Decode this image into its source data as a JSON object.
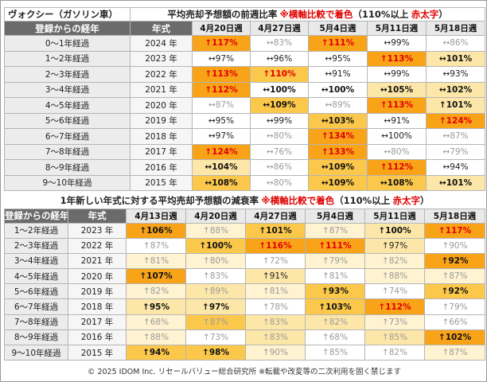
{
  "section1": {
    "car_name": "ヴォクシー（ガソリン車）",
    "title": "平均売却予想額の前週比率",
    "note": "※横軸比較で着色",
    "note_paren_open": "（110%以上",
    "note_bold_red": "赤太字",
    "note_paren_close": "）",
    "col_label": "登録からの経年",
    "col_year": "年式",
    "weeks": [
      "4月20日週",
      "4月27日週",
      "5月4日週",
      "5月11日週",
      "5月18日週"
    ],
    "rows": [
      {
        "label": "0～1年経過",
        "year": "2024 年",
        "cells": [
          {
            "v": "↑117%",
            "c": "c-dark",
            "s": "v-red"
          },
          {
            "v": "↔83%",
            "c": "c-white",
            "s": "v-gray"
          },
          {
            "v": "↑111%",
            "c": "c-dark",
            "s": "v-red"
          },
          {
            "v": "↔99%",
            "c": "c-white",
            "s": "v-normal"
          },
          {
            "v": "↔86%",
            "c": "c-white",
            "s": "v-gray"
          }
        ]
      },
      {
        "label": "1～2年経過",
        "year": "2023 年",
        "cells": [
          {
            "v": "↔97%",
            "c": "c-white",
            "s": "v-normal"
          },
          {
            "v": "↔96%",
            "c": "c-white",
            "s": "v-normal"
          },
          {
            "v": "↔95%",
            "c": "c-white",
            "s": "v-normal"
          },
          {
            "v": "↑113%",
            "c": "c-dark",
            "s": "v-red"
          },
          {
            "v": "↔101%",
            "c": "c-light",
            "s": "v-bold"
          }
        ]
      },
      {
        "label": "2～3年経過",
        "year": "2022 年",
        "cells": [
          {
            "v": "↑113%",
            "c": "c-dark",
            "s": "v-red"
          },
          {
            "v": "↑110%",
            "c": "c-mid",
            "s": "v-red"
          },
          {
            "v": "↔91%",
            "c": "c-white",
            "s": "v-normal"
          },
          {
            "v": "↔99%",
            "c": "c-white",
            "s": "v-normal"
          },
          {
            "v": "↔93%",
            "c": "c-white",
            "s": "v-normal"
          }
        ]
      },
      {
        "label": "3～4年経過",
        "year": "2021 年",
        "cells": [
          {
            "v": "↑112%",
            "c": "c-dark",
            "s": "v-red"
          },
          {
            "v": "↔100%",
            "c": "c-white",
            "s": "v-bold"
          },
          {
            "v": "↔100%",
            "c": "c-white",
            "s": "v-bold"
          },
          {
            "v": "↔105%",
            "c": "c-light",
            "s": "v-bold"
          },
          {
            "v": "↔102%",
            "c": "c-light",
            "s": "v-bold"
          }
        ]
      },
      {
        "label": "4～5年経過",
        "year": "2020 年",
        "cells": [
          {
            "v": "↔87%",
            "c": "c-white",
            "s": "v-gray"
          },
          {
            "v": "↔109%",
            "c": "c-mid",
            "s": "v-bold"
          },
          {
            "v": "↔89%",
            "c": "c-white",
            "s": "v-gray"
          },
          {
            "v": "↑113%",
            "c": "c-dark",
            "s": "v-red"
          },
          {
            "v": "↑101%",
            "c": "c-light",
            "s": "v-bold"
          }
        ]
      },
      {
        "label": "5～6年経過",
        "year": "2019 年",
        "cells": [
          {
            "v": "↔95%",
            "c": "c-white",
            "s": "v-normal"
          },
          {
            "v": "↔99%",
            "c": "c-white",
            "s": "v-normal"
          },
          {
            "v": "↔103%",
            "c": "c-mid",
            "s": "v-bold"
          },
          {
            "v": "↔91%",
            "c": "c-white",
            "s": "v-normal"
          },
          {
            "v": "↑124%",
            "c": "c-dark",
            "s": "v-red"
          }
        ]
      },
      {
        "label": "6～7年経過",
        "year": "2018 年",
        "cells": [
          {
            "v": "↔97%",
            "c": "c-white",
            "s": "v-normal"
          },
          {
            "v": "↔80%",
            "c": "c-white",
            "s": "v-gray"
          },
          {
            "v": "↑134%",
            "c": "c-dark",
            "s": "v-red"
          },
          {
            "v": "↔100%",
            "c": "c-white",
            "s": "v-normal"
          },
          {
            "v": "↔87%",
            "c": "c-white",
            "s": "v-gray"
          }
        ]
      },
      {
        "label": "7～8年経過",
        "year": "2017 年",
        "cells": [
          {
            "v": "↑124%",
            "c": "c-dark",
            "s": "v-red"
          },
          {
            "v": "↔76%",
            "c": "c-white",
            "s": "v-gray"
          },
          {
            "v": "↑133%",
            "c": "c-dark",
            "s": "v-red"
          },
          {
            "v": "↔80%",
            "c": "c-white",
            "s": "v-gray"
          },
          {
            "v": "↔79%",
            "c": "c-white",
            "s": "v-gray"
          }
        ]
      },
      {
        "label": "8～9年経過",
        "year": "2016 年",
        "cells": [
          {
            "v": "↔104%",
            "c": "c-light",
            "s": "v-bold"
          },
          {
            "v": "↔86%",
            "c": "c-white",
            "s": "v-gray"
          },
          {
            "v": "↔109%",
            "c": "c-mid",
            "s": "v-bold"
          },
          {
            "v": "↑112%",
            "c": "c-dark",
            "s": "v-red"
          },
          {
            "v": "↔94%",
            "c": "c-white",
            "s": "v-normal"
          }
        ]
      },
      {
        "label": "9～10年経過",
        "year": "2015 年",
        "cells": [
          {
            "v": "↔108%",
            "c": "c-mid",
            "s": "v-bold"
          },
          {
            "v": "↔80%",
            "c": "c-white",
            "s": "v-gray"
          },
          {
            "v": "↔109%",
            "c": "c-mid",
            "s": "v-bold"
          },
          {
            "v": "↔108%",
            "c": "c-mid",
            "s": "v-bold"
          },
          {
            "v": "↔101%",
            "c": "c-light",
            "s": "v-bold"
          }
        ]
      }
    ]
  },
  "section2": {
    "title": "1年新しい年式に対する平均売却予想額の減衰率",
    "note": "※横軸比較で着色",
    "note_paren_open": "（110%以上",
    "note_bold_red": "赤太字",
    "note_paren_close": "）",
    "col_label": "登録からの経年",
    "col_year": "年式",
    "weeks": [
      "4月13日週",
      "4月20日週",
      "4月27日週",
      "5月4日週",
      "5月11日週",
      "5月18日週"
    ],
    "rows": [
      {
        "label": "1～2年経過",
        "year": "2023 年",
        "cells": [
          {
            "v": "↑106%",
            "c": "c-dark",
            "s": "v-bold"
          },
          {
            "v": "↑88%",
            "c": "c-pale",
            "s": "v-gray"
          },
          {
            "v": "↑101%",
            "c": "c-mid",
            "s": "v-bold"
          },
          {
            "v": "↑87%",
            "c": "c-pale",
            "s": "v-gray"
          },
          {
            "v": "↑100%",
            "c": "c-light",
            "s": "v-bold"
          },
          {
            "v": "↑117%",
            "c": "c-dark",
            "s": "v-red"
          }
        ]
      },
      {
        "label": "2～3年経過",
        "year": "2022 年",
        "cells": [
          {
            "v": "↑87%",
            "c": "c-white",
            "s": "v-gray"
          },
          {
            "v": "↑100%",
            "c": "c-mid",
            "s": "v-bold"
          },
          {
            "v": "↑116%",
            "c": "c-dark",
            "s": "v-red"
          },
          {
            "v": "↑111%",
            "c": "c-dark",
            "s": "v-red"
          },
          {
            "v": "↑97%",
            "c": "c-light",
            "s": "v-normal"
          },
          {
            "v": "↑90%",
            "c": "c-white",
            "s": "v-gray"
          }
        ]
      },
      {
        "label": "3～4年経過",
        "year": "2021 年",
        "cells": [
          {
            "v": "↑81%",
            "c": "c-pale",
            "s": "v-gray"
          },
          {
            "v": "↑80%",
            "c": "c-pale",
            "s": "v-gray"
          },
          {
            "v": "↑72%",
            "c": "c-white",
            "s": "v-gray"
          },
          {
            "v": "↑79%",
            "c": "c-pale",
            "s": "v-gray"
          },
          {
            "v": "↑82%",
            "c": "c-pale",
            "s": "v-gray"
          },
          {
            "v": "↑92%",
            "c": "c-dark",
            "s": "v-bold"
          }
        ]
      },
      {
        "label": "4～5年経過",
        "year": "2020 年",
        "cells": [
          {
            "v": "↑107%",
            "c": "c-dark",
            "s": "v-bold"
          },
          {
            "v": "↑83%",
            "c": "c-white",
            "s": "v-gray"
          },
          {
            "v": "↑91%",
            "c": "c-light",
            "s": "v-normal"
          },
          {
            "v": "↑81%",
            "c": "c-white",
            "s": "v-gray"
          },
          {
            "v": "↑88%",
            "c": "c-pale",
            "s": "v-gray"
          },
          {
            "v": "↑87%",
            "c": "c-pale",
            "s": "v-gray"
          }
        ]
      },
      {
        "label": "5～6年経過",
        "year": "2019 年",
        "cells": [
          {
            "v": "↑82%",
            "c": "c-pale",
            "s": "v-gray"
          },
          {
            "v": "↑89%",
            "c": "c-light",
            "s": "v-gray"
          },
          {
            "v": "↑81%",
            "c": "c-pale",
            "s": "v-gray"
          },
          {
            "v": "↑93%",
            "c": "c-mid",
            "s": "v-bold"
          },
          {
            "v": "↑74%",
            "c": "c-white",
            "s": "v-gray"
          },
          {
            "v": "↑92%",
            "c": "c-mid",
            "s": "v-bold"
          }
        ]
      },
      {
        "label": "6～7年経過",
        "year": "2018 年",
        "cells": [
          {
            "v": "↑95%",
            "c": "c-light",
            "s": "v-bold"
          },
          {
            "v": "↑97%",
            "c": "c-light",
            "s": "v-bold"
          },
          {
            "v": "↑78%",
            "c": "c-white",
            "s": "v-gray"
          },
          {
            "v": "↑103%",
            "c": "c-mid",
            "s": "v-bold"
          },
          {
            "v": "↑112%",
            "c": "c-dark",
            "s": "v-red"
          },
          {
            "v": "↑79%",
            "c": "c-white",
            "s": "v-gray"
          }
        ]
      },
      {
        "label": "7～8年経過",
        "year": "2017 年",
        "cells": [
          {
            "v": "↑68%",
            "c": "c-pale",
            "s": "v-gray"
          },
          {
            "v": "↑87%",
            "c": "c-mid",
            "s": "v-gray"
          },
          {
            "v": "↑83%",
            "c": "c-light",
            "s": "v-gray"
          },
          {
            "v": "↑82%",
            "c": "c-light",
            "s": "v-gray"
          },
          {
            "v": "↑73%",
            "c": "c-pale",
            "s": "v-gray"
          },
          {
            "v": "↑66%",
            "c": "c-white",
            "s": "v-gray"
          }
        ]
      },
      {
        "label": "8～9年経過",
        "year": "2016 年",
        "cells": [
          {
            "v": "↑88%",
            "c": "c-pale",
            "s": "v-gray"
          },
          {
            "v": "↑73%",
            "c": "c-white",
            "s": "v-gray"
          },
          {
            "v": "↑83%",
            "c": "c-light",
            "s": "v-gray"
          },
          {
            "v": "↑68%",
            "c": "c-white",
            "s": "v-gray"
          },
          {
            "v": "↑85%",
            "c": "c-light",
            "s": "v-gray"
          },
          {
            "v": "↑102%",
            "c": "c-dark",
            "s": "v-bold"
          }
        ]
      },
      {
        "label": "9～10年経過",
        "year": "2015 年",
        "cells": [
          {
            "v": "↑94%",
            "c": "c-mid",
            "s": "v-bold"
          },
          {
            "v": "↑98%",
            "c": "c-mid",
            "s": "v-bold"
          },
          {
            "v": "↑90%",
            "c": "c-pale",
            "s": "v-gray"
          },
          {
            "v": "↑85%",
            "c": "c-white",
            "s": "v-gray"
          },
          {
            "v": "↑82%",
            "c": "c-white",
            "s": "v-gray"
          },
          {
            "v": "↑87%",
            "c": "c-pale",
            "s": "v-gray"
          }
        ]
      }
    ]
  },
  "footer": "© 2025 IDOM Inc. リセールバリュー総合研究所 ※転載や改変等の二次利用を固く禁じます",
  "colors": {
    "header_gray": "#6b6b6b",
    "dark_orange": "#f9a319",
    "mid_orange": "#fbc84c",
    "light_orange": "#fde7a8",
    "accent_red": "#e00000"
  }
}
